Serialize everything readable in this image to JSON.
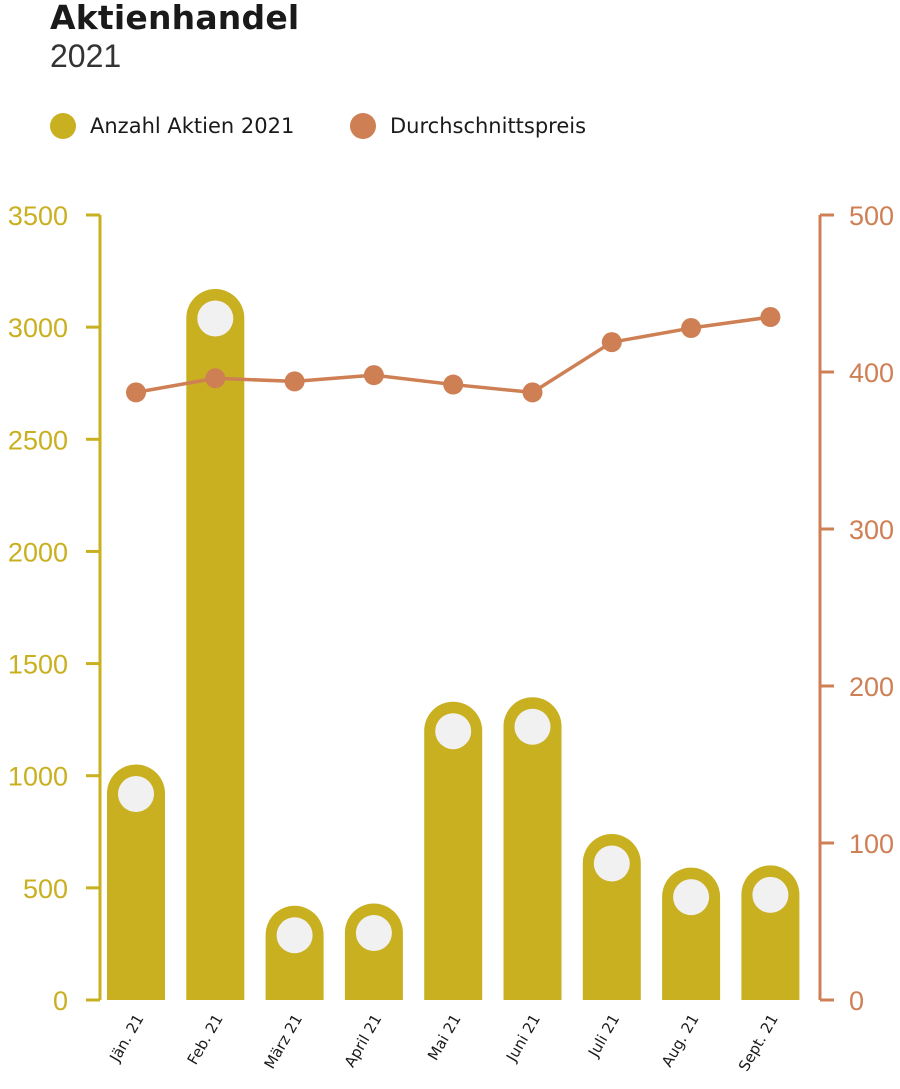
{
  "chart_data": {
    "type": "bar",
    "title": "Aktienhandel",
    "subtitle": "2021",
    "categories": [
      "Jän. 21",
      "Feb. 21",
      "März 21",
      "April 21",
      "Mai 21",
      "Juni 21",
      "Juli 21",
      "Aug. 21",
      "Sept. 21"
    ],
    "series": [
      {
        "name": "Anzahl Aktien 2021",
        "type": "bar",
        "axis": "left",
        "color": "#C9B021",
        "values": [
          1050,
          3170,
          420,
          430,
          1330,
          1350,
          740,
          590,
          600
        ]
      },
      {
        "name": "Durchschnittspreis",
        "type": "line",
        "axis": "right",
        "color": "#CF7F54",
        "values": [
          387,
          396,
          394,
          398,
          392,
          387,
          419,
          428,
          435
        ]
      }
    ],
    "y_left": {
      "min": 0,
      "max": 3500,
      "ticks": [
        0,
        500,
        1000,
        1500,
        2000,
        2500,
        3000,
        3500
      ],
      "color": "#C9B021"
    },
    "y_right": {
      "min": 0,
      "max": 500,
      "ticks": [
        0,
        100,
        200,
        300,
        400,
        500
      ],
      "color": "#CF7F54"
    },
    "legend_position": "top-left",
    "grid": false
  }
}
